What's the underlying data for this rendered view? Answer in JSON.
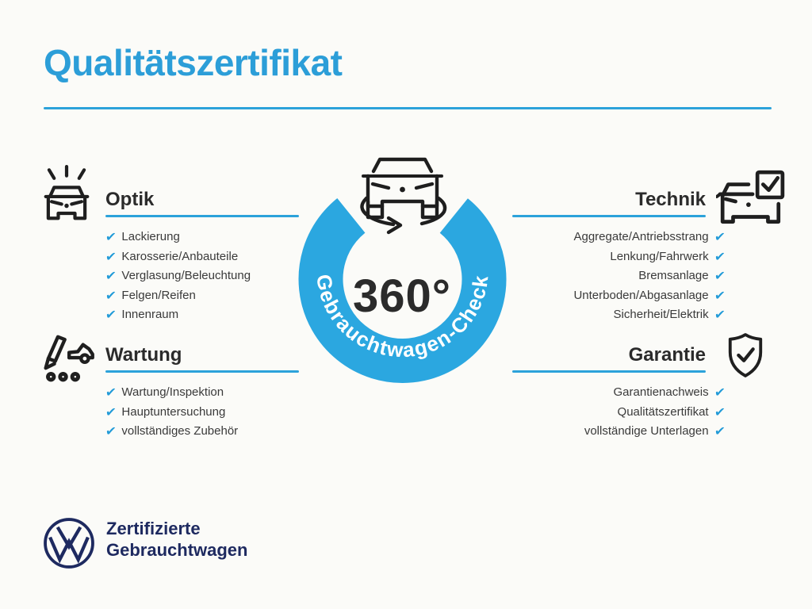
{
  "title": "Qualitätszertifikat",
  "colors": {
    "accent_blue": "#2ca2da",
    "ring_blue": "#2ba7e0",
    "heading_dark": "#2b2b2b",
    "item_text": "#3a3a3a",
    "vw_navy": "#1e2a60"
  },
  "center": {
    "value": "360°",
    "ring_label": "Gebrauchtwagen-Check"
  },
  "icons": {
    "check_glyph": "✔"
  },
  "sections": [
    {
      "id": "optik",
      "title": "Optik",
      "align": "left",
      "icon": "sparkling-car-icon",
      "items": [
        "Lackierung",
        "Karosserie/Anbauteile",
        "Verglasung/Beleuchtung",
        "Felgen/Reifen",
        "Innenraum"
      ]
    },
    {
      "id": "wartung",
      "title": "Wartung",
      "align": "left",
      "icon": "service-checklist-car-icon",
      "items": [
        "Wartung/Inspektion",
        "Hauptuntersuchung",
        "vollständiges Zubehör"
      ]
    },
    {
      "id": "technik",
      "title": "Technik",
      "align": "right",
      "icon": "car-checkbox-icon",
      "items": [
        "Aggregate/Antriebsstrang",
        "Lenkung/Fahrwerk",
        "Bremsanlage",
        "Unterboden/Abgasanlage",
        "Sicherheit/Elektrik"
      ]
    },
    {
      "id": "garantie",
      "title": "Garantie",
      "align": "right",
      "icon": "shield-check-icon",
      "items": [
        "Garantienachweis",
        "Qualitätszertifikat",
        "vollständige Unterlagen"
      ]
    }
  ],
  "footer": {
    "brand_line1": "Zertifizierte",
    "brand_line2": "Gebrauchtwagen"
  }
}
